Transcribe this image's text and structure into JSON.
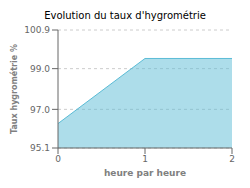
{
  "chart_data": {
    "type": "area",
    "title": "Evolution du taux d'hygrométrie",
    "xlabel": "heure par heure",
    "ylabel": "Taux hygrométrie %",
    "x": [
      0,
      1,
      2
    ],
    "values": [
      96.3,
      99.5,
      99.5
    ],
    "color": "#5bbcd6",
    "xlim": [
      0,
      2
    ],
    "ylim": [
      95.1,
      100.9
    ],
    "xticks": [
      0,
      1,
      2
    ],
    "yticks": [
      95.1,
      {
        "value": 97.0,
        "label": "97.0"
      },
      {
        "value": 99.0,
        "label": "99.0"
      },
      100.9
    ],
    "grid": true
  }
}
